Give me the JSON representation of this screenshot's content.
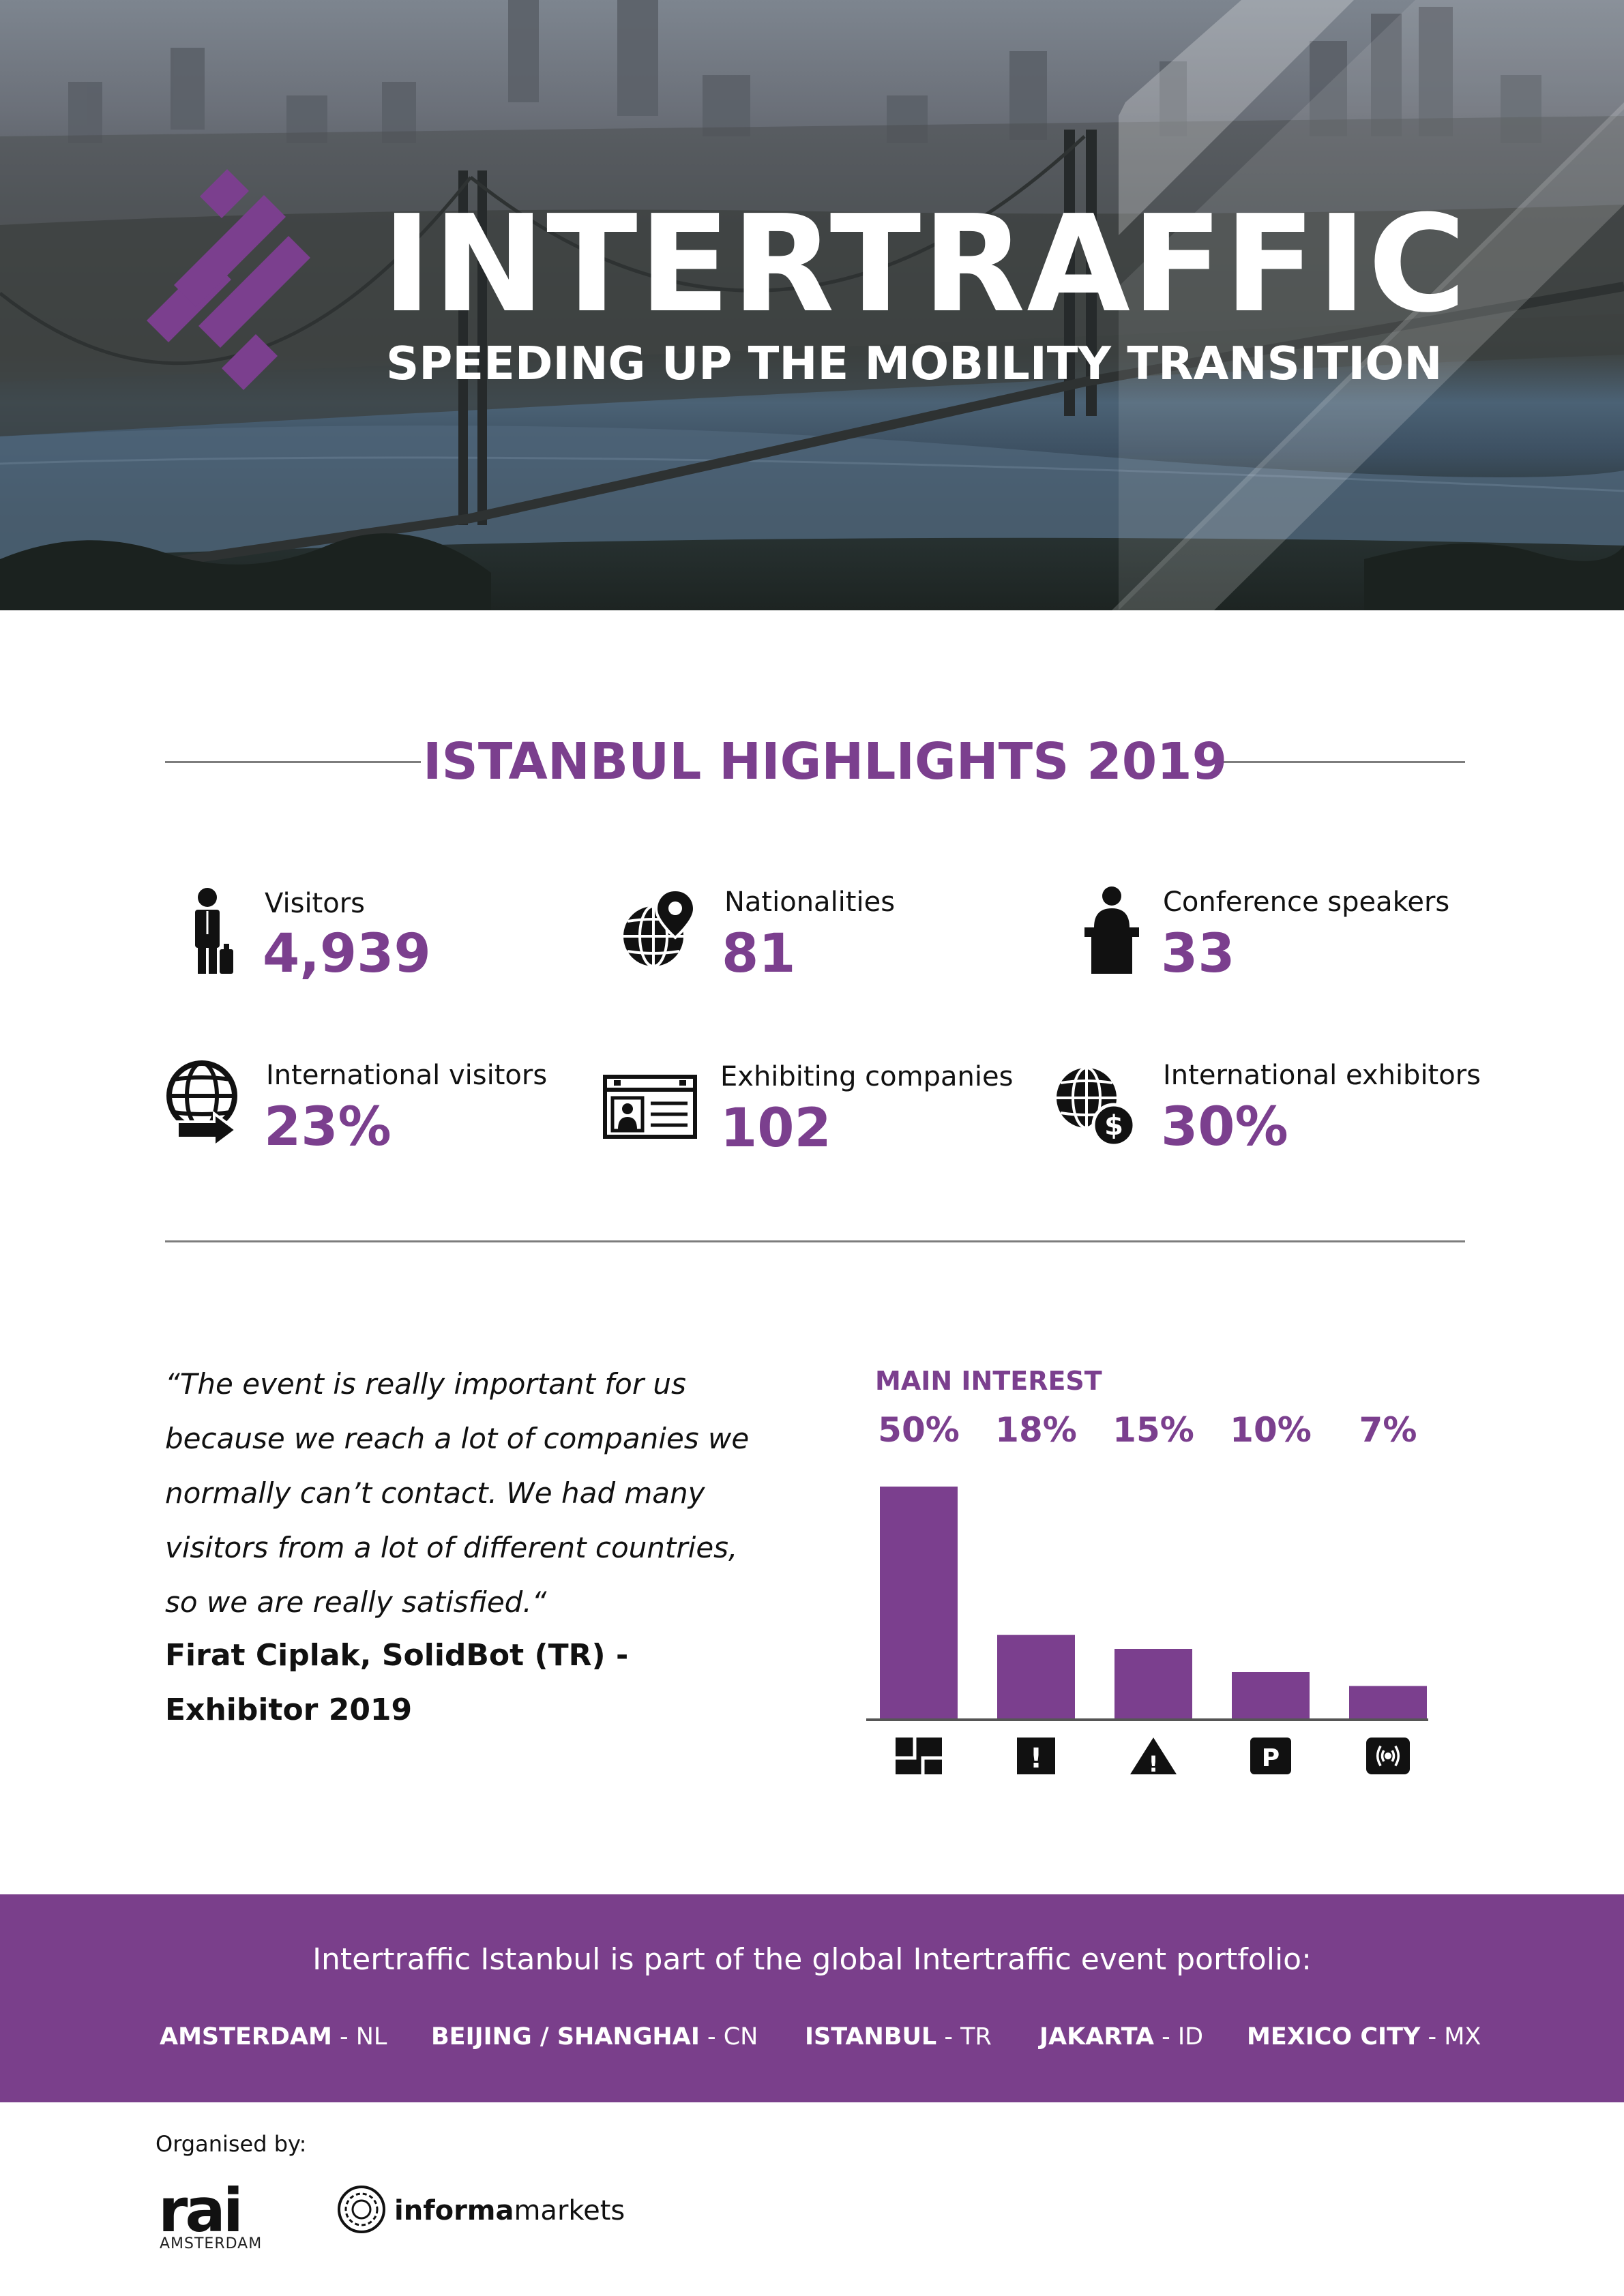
{
  "hero": {
    "title": "INTERTRAFFIC",
    "tagline": "SPEEDING UP THE MOBILITY TRANSITION",
    "accent": "#7b3f8e"
  },
  "highlights": {
    "title": "ISTANBUL HIGHLIGHTS 2019",
    "stats": [
      {
        "label": "Visitors",
        "value": "4,939",
        "icon": "visitor-person-icon"
      },
      {
        "label": "Nationalities",
        "value": "81",
        "icon": "globe-pin-icon"
      },
      {
        "label": "Conference speakers",
        "value": "33",
        "icon": "speaker-podium-icon"
      },
      {
        "label": "International visitors",
        "value": "23%",
        "icon": "globe-arrow-icon"
      },
      {
        "label": "Exhibiting companies",
        "value": "102",
        "icon": "id-card-icon"
      },
      {
        "label": "International exhibitors",
        "value": "30%",
        "icon": "globe-dollar-icon"
      }
    ]
  },
  "quote": {
    "text": "“The event is really important for us because we reach a lot of companies we normally can’t contact. We had many visitors from a lot of different countries, so we are really satisfied.“",
    "author": "Firat Ciplak, SolidBot (TR) - Exhibitor 2019"
  },
  "chart_data": {
    "type": "bar",
    "title": "MAIN INTEREST",
    "categories": [
      "smart-traffic-icon",
      "warning-sign-icon",
      "hazard-triangle-icon",
      "parking-icon",
      "connected-signal-icon"
    ],
    "values": [
      50,
      18,
      15,
      10,
      7
    ],
    "labels": [
      "50%",
      "18%",
      "15%",
      "10%",
      "7%"
    ],
    "ylim": [
      0,
      50
    ],
    "color": "#7b3f8e",
    "grid": false,
    "legend": "none"
  },
  "portfolio": {
    "text": "Intertraffic Istanbul is part of the global Intertraffic event portfolio:",
    "cities": [
      {
        "name": "AMSTERDAM",
        "code": "- NL"
      },
      {
        "name": "BEIJING / SHANGHAI",
        "code": "- CN"
      },
      {
        "name": "ISTANBUL",
        "code": "- TR"
      },
      {
        "name": "JAKARTA",
        "code": "- ID"
      },
      {
        "name": "MEXICO CITY",
        "code": "- MX"
      }
    ]
  },
  "footer": {
    "organised_by": "Organised by:",
    "rai_word": "rai",
    "rai_sub": "AMSTERDAM",
    "informa_brand": "informa",
    "informa_suffix": "markets"
  }
}
